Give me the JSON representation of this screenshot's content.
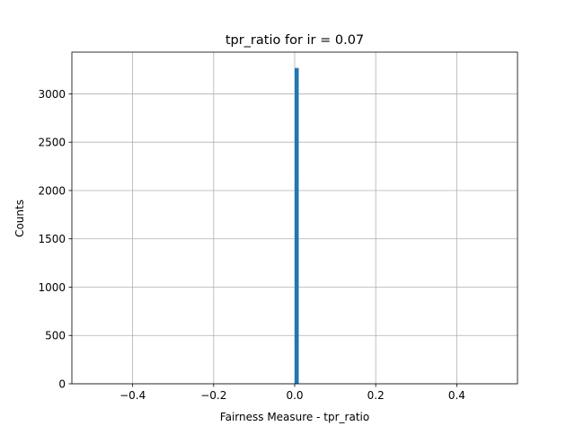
{
  "chart_data": {
    "type": "bar",
    "title": "tpr_ratio for ir = 0.07",
    "xlabel": "Fairness Measure - tpr_ratio",
    "ylabel": "Counts",
    "xlim": [
      -0.55,
      0.55
    ],
    "ylim": [
      0,
      3432
    ],
    "xticks": [
      -0.4,
      -0.2,
      0.0,
      0.2,
      0.4
    ],
    "xtick_labels": [
      "−0.4",
      "−0.2",
      "0.0",
      "0.2",
      "0.4"
    ],
    "yticks": [
      0,
      500,
      1000,
      1500,
      2000,
      2500,
      3000
    ],
    "ytick_labels": [
      "0",
      "500",
      "1000",
      "1500",
      "2000",
      "2500",
      "3000"
    ],
    "grid": true,
    "bins": [
      {
        "x0": 0.0,
        "x1": 0.01,
        "count": 3268
      }
    ],
    "colors": {
      "bar": "#1f77b4",
      "grid": "#b0b0b0",
      "axes": "#000000"
    }
  }
}
